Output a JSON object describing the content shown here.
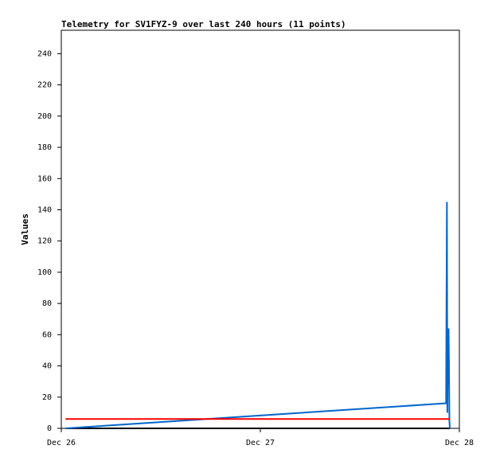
{
  "chart_data": {
    "type": "line",
    "title": "Telemetry for SV1FYZ-9 over last 240 hours (11 points)",
    "ylabel": "Values",
    "xlim": [
      0,
      48
    ],
    "xticks": [
      {
        "value": 0,
        "label": "Dec 26"
      },
      {
        "value": 24,
        "label": "Dec 27"
      },
      {
        "value": 48,
        "label": "Dec 28"
      }
    ],
    "ylim": [
      0,
      255
    ],
    "yticks": [
      0,
      20,
      40,
      60,
      80,
      100,
      120,
      140,
      160,
      180,
      200,
      220,
      240
    ],
    "series": [
      {
        "color": "#000000",
        "x": [
          0.5,
          46.85
        ],
        "values": [
          0,
          0
        ]
      },
      {
        "color": "#0066cc",
        "x": [
          0.5,
          46.2,
          46.4,
          46.5,
          46.55,
          46.6,
          46.65,
          46.7,
          46.75,
          46.8,
          46.85
        ],
        "values": [
          0,
          16,
          16,
          145,
          10,
          53,
          33,
          64,
          40,
          5,
          0
        ]
      },
      {
        "color": "#ff0000",
        "x": [
          0.5,
          46.85
        ],
        "values": [
          6,
          6
        ]
      }
    ]
  }
}
